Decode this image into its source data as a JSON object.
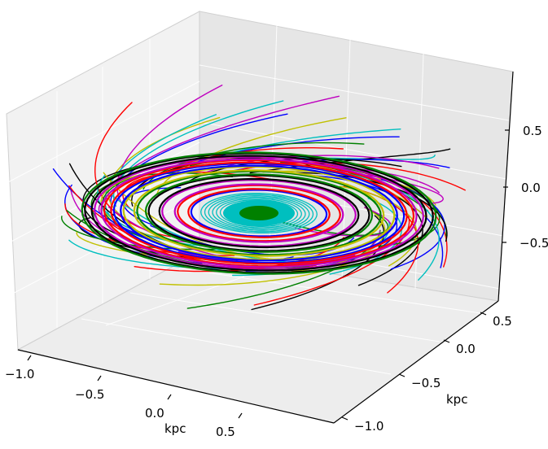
{
  "chart_data": {
    "type": "3d-line",
    "title": "",
    "axes": {
      "x": {
        "label": "kpc",
        "ticks": [
          "−1.0",
          "−0.5",
          "0.0",
          "0.5"
        ],
        "range": [
          -1.1,
          1.1
        ]
      },
      "y": {
        "label": "kpc",
        "ticks": [
          "−1.0",
          "−0.5",
          "0.0",
          "0.5"
        ],
        "range": [
          -1.1,
          1.1
        ]
      },
      "z": {
        "label": "",
        "ticks": [
          "−0.5",
          "0.0",
          "0.5"
        ],
        "range": [
          -1.0,
          1.0
        ]
      }
    },
    "grid": true,
    "legend": "none",
    "series_colors": [
      "#0000ff",
      "#ff0000",
      "#008000",
      "#c0c000",
      "#bf00bf",
      "#00bfbf",
      "#000000"
    ],
    "disk": {
      "inner_core_color": "#008000",
      "inner_disk_color": "#00bfbf",
      "ring_colors": [
        "#0000ff",
        "#ff0000",
        "#bf00bf",
        "#000000",
        "#008000",
        "#c0c000"
      ],
      "ring_radii_kpc": [
        0.35,
        0.42,
        0.5,
        0.57,
        0.63,
        0.7,
        0.75,
        0.8,
        0.85,
        0.9
      ]
    },
    "trajectories": {
      "count": 70,
      "start_radius_kpc_min": 0.9,
      "start_radius_kpc_max": 1.1,
      "start_z_kpc_min": -0.5,
      "start_z_kpc_max": 0.9
    }
  }
}
